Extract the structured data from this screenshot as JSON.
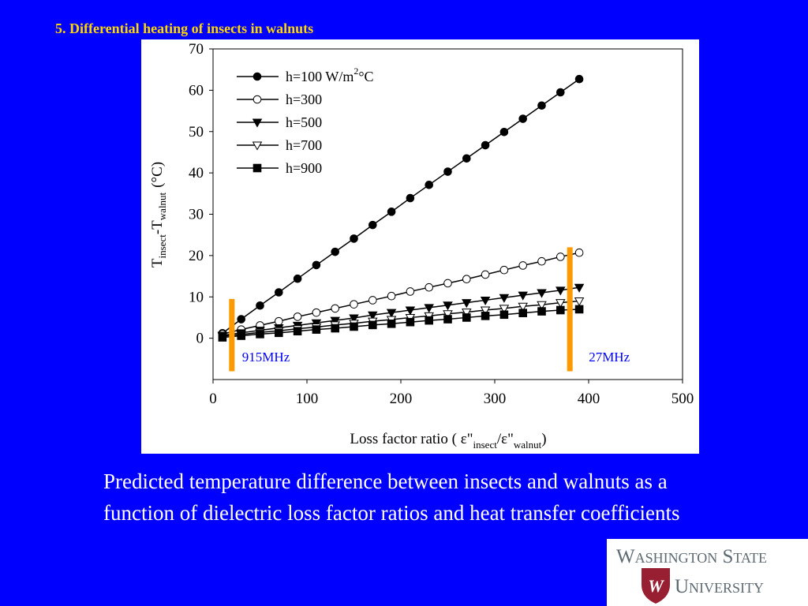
{
  "slide": {
    "title": "5. Differential heating of insects in walnuts",
    "caption": "Predicted temperature difference between insects and walnuts as a function of dielectric loss factor ratios and heat transfer coefficients"
  },
  "logo": {
    "line1": "Washington State",
    "line2": "University",
    "crimson": "#981E32",
    "gray": "#5E6A71"
  },
  "colors": {
    "background": "#0000FF",
    "title": "#FFD700",
    "annotation_bar": "#FF9900",
    "annotation_text": "#0000FF"
  },
  "chart_data": {
    "type": "line",
    "ylabel": {
      "main": "T",
      "sub1": "insect",
      "mid": "-T",
      "sub2": "walnut",
      "tail": "(°C)"
    },
    "xlabel": {
      "pre": "Loss factor ratio ( ε\"",
      "sub1": "insect",
      "mid": "/ε\"",
      "sub2": "walnut",
      "tail": ")"
    },
    "xlim": [
      0,
      500
    ],
    "ylim": [
      -10,
      70
    ],
    "xticks": [
      0,
      100,
      200,
      300,
      400,
      500
    ],
    "yticks": [
      0,
      10,
      20,
      30,
      40,
      50,
      60,
      70
    ],
    "grid": false,
    "legend_position": "top-left",
    "x": [
      10,
      30,
      50,
      70,
      90,
      110,
      130,
      150,
      170,
      190,
      210,
      230,
      250,
      270,
      290,
      310,
      330,
      350,
      370,
      390
    ],
    "series": [
      {
        "name": "h=100 W/m²°C",
        "name_main": "h=100 W/m",
        "name_sup": "2",
        "name_tail": "°C",
        "marker": "circle-filled",
        "values": [
          1.2,
          4.6,
          7.9,
          11.1,
          14.4,
          17.7,
          20.9,
          24.1,
          27.4,
          30.6,
          33.9,
          37.1,
          40.3,
          43.5,
          46.7,
          49.9,
          53.1,
          56.3,
          59.5,
          62.7
        ]
      },
      {
        "name": "h=300",
        "marker": "circle-open",
        "values": [
          1.0,
          2.1,
          3.1,
          4.1,
          5.2,
          6.2,
          7.2,
          8.2,
          9.2,
          10.2,
          11.3,
          12.3,
          13.3,
          14.3,
          15.4,
          16.5,
          17.6,
          18.6,
          19.7,
          20.7
        ]
      },
      {
        "name": "h=500",
        "marker": "triangle-down-filled",
        "values": [
          0.7,
          1.3,
          1.9,
          2.5,
          3.1,
          3.7,
          4.3,
          4.9,
          5.6,
          6.2,
          6.8,
          7.4,
          8.0,
          8.6,
          9.2,
          9.8,
          10.4,
          11.0,
          11.6,
          12.3
        ]
      },
      {
        "name": "h=700",
        "marker": "triangle-down-open",
        "values": [
          0.5,
          0.9,
          1.4,
          1.8,
          2.3,
          2.7,
          3.2,
          3.6,
          4.1,
          4.5,
          5.0,
          5.4,
          5.9,
          6.3,
          6.8,
          7.2,
          7.7,
          8.1,
          8.6,
          9.0
        ]
      },
      {
        "name": "h=900",
        "marker": "square-filled",
        "values": [
          0.2,
          0.6,
          1.0,
          1.3,
          1.7,
          2.1,
          2.4,
          2.8,
          3.2,
          3.5,
          3.9,
          4.3,
          4.6,
          5.0,
          5.4,
          5.7,
          6.1,
          6.5,
          6.8,
          7.0
        ]
      }
    ],
    "annotations": [
      {
        "label": "915MHz",
        "x": 20,
        "y_range": [
          -8,
          9.5
        ]
      },
      {
        "label": "27MHz",
        "x": 380,
        "y_range": [
          -8,
          22
        ]
      }
    ]
  }
}
